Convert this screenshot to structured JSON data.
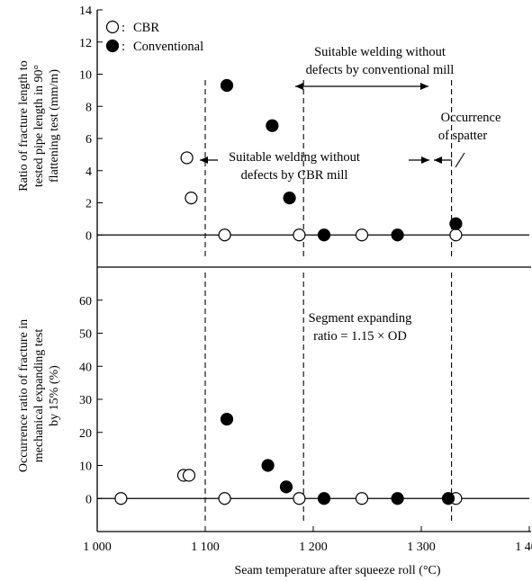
{
  "chart_data": [
    {
      "type": "scatter",
      "title": "",
      "ylabel_lines": [
        "Ratio of fracture length to",
        "tested pipe length in 90°",
        "flattening test (mm/m)"
      ],
      "ylim": [
        -2,
        14
      ],
      "yticks": [
        0,
        2,
        4,
        6,
        8,
        10,
        12,
        14
      ],
      "series": [
        {
          "name": "CBR",
          "marker": "open-circle",
          "x": [
            1083,
            1087,
            1118,
            1187,
            1245,
            1332
          ],
          "y": [
            4.8,
            2.3,
            0,
            0,
            0,
            0
          ]
        },
        {
          "name": "Conventional",
          "marker": "filled-circle",
          "x": [
            1120,
            1162,
            1178,
            1210,
            1278,
            1332
          ],
          "y": [
            9.3,
            6.8,
            2.3,
            0,
            0,
            0.7
          ]
        }
      ],
      "vlines": [
        1100,
        1191,
        1328
      ],
      "annotations": {
        "conventional_line1": "Suitable welding without",
        "conventional_line2": "defects by conventional mill",
        "cbr_line1": "Suitable welding without",
        "cbr_line2": "defects by CBR mill",
        "spatter_line1": "Occurrence",
        "spatter_line2": "of spatter"
      }
    },
    {
      "type": "scatter",
      "title": "",
      "ylabel_lines": [
        "Occurrence ratio of fracture in",
        "mechanical expanding test",
        "by 15% (%)"
      ],
      "xlabel": "Seam temperature after squeeze roll (°C)",
      "xlim": [
        1000,
        1400
      ],
      "xticks": [
        "1 000",
        "1 100",
        "1 200",
        "1 300",
        "1 400"
      ],
      "ylim": [
        -10,
        70
      ],
      "yticks": [
        0,
        10,
        20,
        30,
        40,
        50,
        60
      ],
      "series": [
        {
          "name": "CBR",
          "marker": "open-circle",
          "x": [
            1022,
            1080,
            1085,
            1118,
            1187,
            1245,
            1332
          ],
          "y": [
            0,
            7,
            7,
            0,
            0,
            0,
            0
          ]
        },
        {
          "name": "Conventional",
          "marker": "filled-circle",
          "x": [
            1120,
            1158,
            1175,
            1210,
            1278,
            1325
          ],
          "y": [
            24,
            10,
            3.5,
            0,
            0,
            0
          ]
        }
      ],
      "vlines": [
        1100,
        1191,
        1328
      ],
      "annotations": {
        "expand_line1": "Segment expanding",
        "expand_line2": "ratio = 1.15 × OD"
      }
    }
  ],
  "legend": {
    "cbr_label": "CBR",
    "conv_label": "Conventional",
    "sep": ":"
  }
}
